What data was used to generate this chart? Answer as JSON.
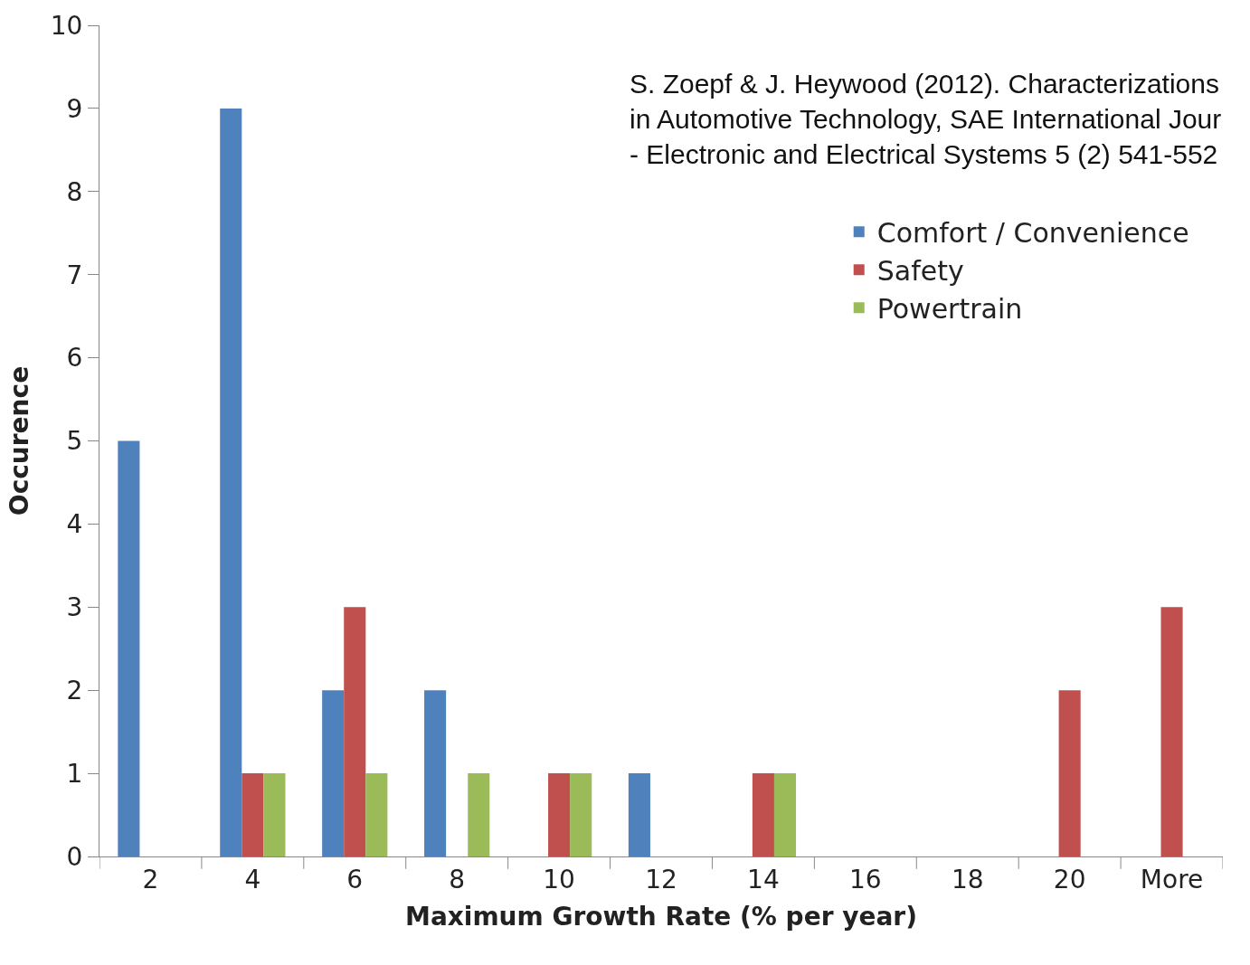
{
  "chart_data": {
    "type": "bar",
    "xlabel": "Maximum Growth Rate (% per year)",
    "ylabel": "Occurence",
    "annotations": [
      "S. Zoepf & J. Heywood (2012). Characterizations\nin Automotive Technology, SAE International Jour\n- Electronic and Electrical Systems 5 (2) 541-552"
    ],
    "categories": [
      "2",
      "4",
      "6",
      "8",
      "10",
      "12",
      "14",
      "16",
      "18",
      "20",
      "More"
    ],
    "series": [
      {
        "name": "Comfort / Convenience",
        "color": "#4f81bd",
        "values": [
          5,
          9,
          2,
          2,
          0,
          1,
          0,
          0,
          0,
          0,
          0
        ]
      },
      {
        "name": "Safety",
        "color": "#c0504d",
        "values": [
          0,
          1,
          3,
          0,
          1,
          0,
          1,
          0,
          0,
          2,
          3
        ]
      },
      {
        "name": "Powertrain",
        "color": "#9bbb59",
        "values": [
          0,
          1,
          1,
          1,
          1,
          0,
          1,
          0,
          0,
          0,
          0
        ]
      }
    ],
    "ylim": [
      0,
      10
    ],
    "yticks": [
      0,
      1,
      2,
      3,
      4,
      5,
      6,
      7,
      8,
      9,
      10
    ],
    "legend": "top right"
  }
}
